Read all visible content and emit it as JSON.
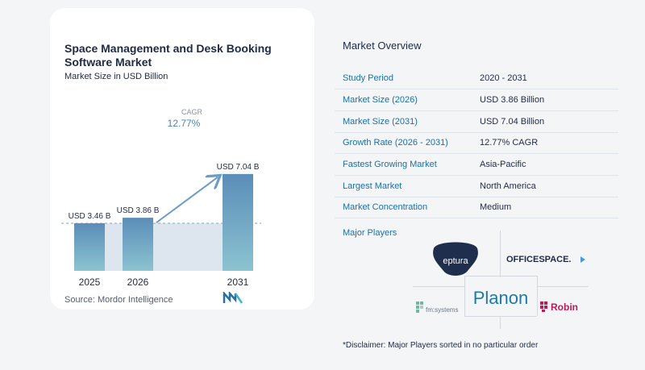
{
  "chart_data": {
    "type": "bar",
    "title": "Space Management and Desk Booking Software Market",
    "subtitle": "Market Size in USD Billion",
    "categories": [
      "2025",
      "2026",
      "2031"
    ],
    "values": [
      3.46,
      3.86,
      7.04
    ],
    "data_labels": [
      "USD 3.46 B",
      "USD 3.86 B",
      "USD 7.04 B"
    ],
    "annotation": {
      "label": "CAGR",
      "value": "12.77%"
    },
    "ylim": [
      0,
      7.5
    ],
    "grid": false,
    "colors": {
      "bar_top": "#5b8db8",
      "bar_bottom": "#8cc3d1",
      "baseline_fill": "#dde5ef",
      "arrow": "#6a9cc5",
      "dash": "#7aa6c8"
    }
  },
  "source": "Source:  Mordor Intelligence",
  "overview": {
    "title": "Market Overview",
    "rows": [
      {
        "key": "Study Period",
        "value": "2020 - 2031"
      },
      {
        "key": "Market Size (2026)",
        "value": "USD 3.86 Billion"
      },
      {
        "key": "Market Size (2031)",
        "value": "USD 7.04 Billion"
      },
      {
        "key": "Growth Rate (2026 - 2031)",
        "value": "12.77% CAGR"
      },
      {
        "key": "Fastest Growing Market",
        "value": "Asia-Pacific"
      },
      {
        "key": "Largest Market",
        "value": "North America"
      },
      {
        "key": "Market Concentration",
        "value": "Medium"
      }
    ]
  },
  "players": {
    "title": "Major Players",
    "logos": [
      "eptura",
      "OFFICESPACE.",
      "fm:systems",
      "Planon",
      "Robin"
    ]
  },
  "disclaimer": "*Disclaimer: Major Players sorted in no particular order",
  "accent": "#1d6fa5"
}
